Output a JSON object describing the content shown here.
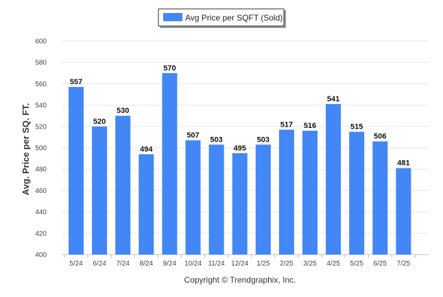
{
  "legend": {
    "label": "Avg Price per SQFT (Sold)"
  },
  "copyright": "Copyright © Trendgraphix, Inc.",
  "chart_data": {
    "type": "bar",
    "title": "",
    "xlabel": "",
    "ylabel": "Avg. Price per SQ. FT.",
    "ylim": [
      400,
      600
    ],
    "yticks": [
      400,
      420,
      440,
      460,
      480,
      500,
      520,
      540,
      560,
      580,
      600
    ],
    "grid": true,
    "legend_position": "top-center",
    "bar_color": "#4287f5",
    "categories": [
      "5/24",
      "6/24",
      "7/24",
      "8/24",
      "9/24",
      "10/24",
      "11/24",
      "12/24",
      "1/25",
      "2/25",
      "3/25",
      "4/25",
      "5/25",
      "6/25",
      "7/25"
    ],
    "series": [
      {
        "name": "Avg Price per SQFT (Sold)",
        "values": [
          557,
          520,
          530,
          494,
          570,
          507,
          503,
          495,
          503,
          517,
          516,
          541,
          515,
          506,
          481
        ]
      }
    ]
  }
}
